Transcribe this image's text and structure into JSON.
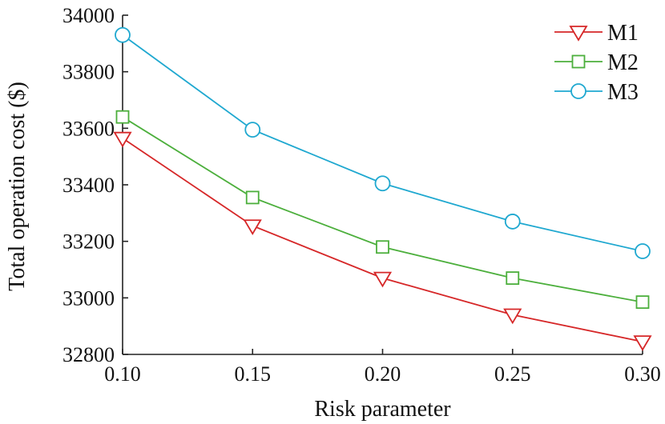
{
  "chart_data": {
    "type": "line",
    "title": "",
    "xlabel": "Risk parameter",
    "ylabel": "Total operation cost ($)",
    "x": [
      0.1,
      0.15,
      0.2,
      0.25,
      0.3
    ],
    "x_tick_labels": [
      "0.10",
      "0.15",
      "0.20",
      "0.25",
      "0.30"
    ],
    "xlim": [
      0.1,
      0.3
    ],
    "ylim": [
      32800,
      34000
    ],
    "y_ticks": [
      32800,
      33000,
      33200,
      33400,
      33600,
      33800,
      34000
    ],
    "y_tick_labels": [
      "32800",
      "33000",
      "33200",
      "33400",
      "33600",
      "33800",
      "34000"
    ],
    "grid": false,
    "legend_position": "top-right",
    "series": [
      {
        "name": "M1",
        "marker": "triangle-down",
        "color": "#d62728",
        "values": [
          33565,
          33255,
          33070,
          32940,
          32845
        ]
      },
      {
        "name": "M2",
        "marker": "square",
        "color": "#4caf3c",
        "values": [
          33640,
          33355,
          33180,
          33070,
          32985
        ]
      },
      {
        "name": "M3",
        "marker": "circle",
        "color": "#1fa8d0",
        "values": [
          33930,
          33595,
          33405,
          33270,
          33165
        ]
      }
    ]
  }
}
